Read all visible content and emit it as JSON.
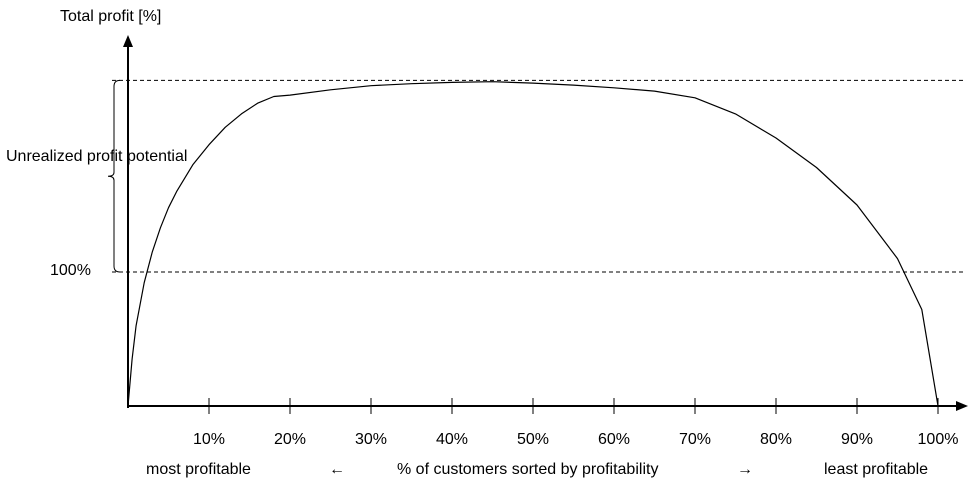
{
  "chart_data": {
    "type": "line",
    "ylabel": "Total profit [%]",
    "xlabel": "% of customers sorted by profitability",
    "x_ticks": [
      "10%",
      "20%",
      "30%",
      "40%",
      "50%",
      "60%",
      "70%",
      "80%",
      "90%",
      "100%"
    ],
    "xlim": [
      0,
      100
    ],
    "ylim": [
      0,
      240
    ],
    "reference_line": {
      "label": "100%",
      "value": 100
    },
    "peak_line_value": 243,
    "annotation": "Unrealized profit potential",
    "left_note": "most profitable",
    "right_note": "least profitable",
    "left_arrow": "←",
    "right_arrow": "→",
    "series": [
      {
        "x": [
          0,
          0.5,
          1,
          2,
          3,
          4,
          5,
          6,
          8,
          10,
          12,
          14,
          16,
          18,
          20,
          25,
          30,
          35,
          40,
          45,
          50,
          55,
          60,
          65,
          70,
          75,
          80,
          85,
          90,
          95,
          98,
          100
        ],
        "y": [
          0,
          35,
          60,
          92,
          115,
          133,
          148,
          160,
          180,
          195,
          208,
          218,
          226,
          231,
          232,
          236,
          239,
          240.5,
          241.5,
          242,
          241,
          239.5,
          237.5,
          235,
          230,
          218,
          200,
          178,
          150,
          110,
          72,
          0
        ]
      }
    ]
  }
}
